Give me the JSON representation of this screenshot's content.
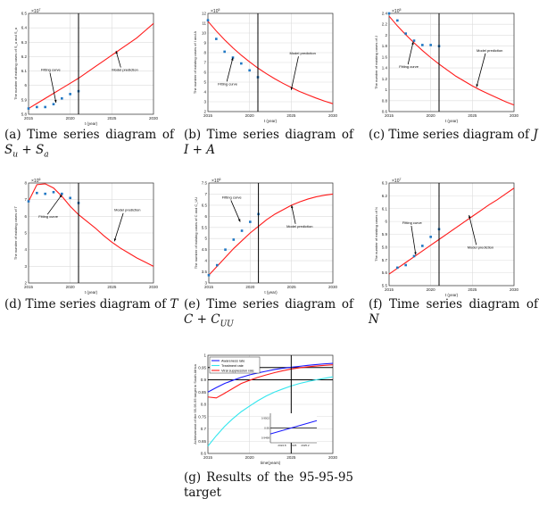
{
  "colors": {
    "model": "#ff1a1a",
    "points": "#1f77c4",
    "vline": "#000000",
    "grid": "#dcdcdc",
    "awareness": "#1a1aff",
    "treatment": "#33e6ee",
    "suppression": "#ff1a1a"
  },
  "captions": [
    {
      "label": "(a) Time series diagram of",
      "math": [
        {
          "t": "S"
        },
        {
          "t": "u",
          "sub": true
        },
        {
          "t": " + "
        },
        {
          "t": "S"
        },
        {
          "t": "a",
          "sub": true
        }
      ]
    },
    {
      "label": "(b) Time series diagram of",
      "math": [
        {
          "t": "I"
        },
        {
          "t": " + "
        },
        {
          "t": "A"
        }
      ]
    },
    {
      "label": "(c) Time series diagram of",
      "math": [
        {
          "t": "J"
        }
      ]
    },
    {
      "label": "(d) Time series diagram of",
      "math": [
        {
          "t": "T"
        }
      ]
    },
    {
      "label": "(e) Time series diagram of",
      "math": [
        {
          "t": "C"
        },
        {
          "t": " + "
        },
        {
          "t": "C"
        },
        {
          "t": "UU",
          "sub": true
        }
      ]
    },
    {
      "label": "(f) Time series diagram of",
      "math": [
        {
          "t": "N"
        }
      ]
    },
    {
      "label": "(g) Results of the 95-95-95 target",
      "math": []
    }
  ],
  "chart_data": [
    {
      "type": "line",
      "xlabel": "t (year)",
      "ylabel": "The number of existing cases of S_u and S_a",
      "exponent": "7",
      "ylim": [
        5.8,
        6.5
      ],
      "yticks": [
        5.8,
        5.9,
        6,
        6.1,
        6.2,
        6.3,
        6.4,
        6.5
      ],
      "xlim": [
        2015,
        2030
      ],
      "xticks": [
        2015,
        2020,
        2025,
        2030
      ],
      "vline": 2021,
      "grid": true,
      "annotations": [
        "Fitting curve",
        "Model prediction"
      ],
      "points": {
        "x": [
          2015,
          2016,
          2017,
          2018,
          2019,
          2020,
          2021
        ],
        "y": [
          5.84,
          5.85,
          5.85,
          5.87,
          5.91,
          5.94,
          5.96
        ]
      },
      "curve": {
        "x": [
          2015,
          2016,
          2017,
          2018,
          2019,
          2020,
          2021,
          2022,
          2023,
          2024,
          2025,
          2026,
          2027,
          2028,
          2029,
          2030
        ],
        "y": [
          5.84,
          5.875,
          5.91,
          5.945,
          5.98,
          6.015,
          6.05,
          6.09,
          6.13,
          6.17,
          6.21,
          6.25,
          6.29,
          6.33,
          6.38,
          6.43
        ]
      }
    },
    {
      "type": "line",
      "xlabel": "t (year)",
      "ylabel": "The number of existing cases of I and A",
      "exponent": "5",
      "ylim": [
        2,
        12
      ],
      "yticks": [
        2,
        3,
        4,
        5,
        6,
        7,
        8,
        9,
        10,
        11,
        12
      ],
      "xlim": [
        2015,
        2030
      ],
      "xticks": [
        2015,
        2020,
        2025,
        2030
      ],
      "vline": 2021,
      "grid": true,
      "annotations": [
        "Fitting curve",
        "Model prediction"
      ],
      "points": {
        "x": [
          2015,
          2016,
          2017,
          2018,
          2019,
          2020,
          2021
        ],
        "y": [
          11.3,
          9.4,
          8.1,
          7.5,
          6.9,
          6.2,
          5.5
        ]
      },
      "curve": {
        "x": [
          2015,
          2016,
          2017,
          2018,
          2019,
          2020,
          2021,
          2022,
          2023,
          2024,
          2025,
          2026,
          2027,
          2028,
          2029,
          2030
        ],
        "y": [
          11.2,
          10.21,
          9.31,
          8.49,
          7.74,
          7.06,
          6.43,
          5.87,
          5.35,
          4.88,
          4.45,
          4.05,
          3.7,
          3.37,
          3.07,
          2.8
        ]
      }
    },
    {
      "type": "line",
      "xlabel": "t (year)",
      "ylabel": "The number of existing cases of J",
      "exponent": "5",
      "ylim": [
        0.6,
        2.4
      ],
      "yticks": [
        0.6,
        0.8,
        1,
        1.2,
        1.4,
        1.6,
        1.8,
        2,
        2.2,
        2.4
      ],
      "xlim": [
        2015,
        2030
      ],
      "xticks": [
        2015,
        2020,
        2025,
        2030
      ],
      "vline": 2021,
      "grid": true,
      "annotations": [
        "Fitting curve",
        "Model prediction"
      ],
      "points": {
        "x": [
          2015,
          2016,
          2017,
          2018,
          2019,
          2020,
          2021
        ],
        "y": [
          2.4,
          2.27,
          2.03,
          1.9,
          1.82,
          1.82,
          1.8
        ]
      },
      "curve": {
        "x": [
          2015,
          2016,
          2017,
          2018,
          2019,
          2020,
          2021,
          2022,
          2023,
          2024,
          2025,
          2026,
          2027,
          2028,
          2029,
          2030
        ],
        "y": [
          2.35,
          2.17,
          2.01,
          1.86,
          1.72,
          1.59,
          1.47,
          1.36,
          1.25,
          1.16,
          1.07,
          0.99,
          0.92,
          0.85,
          0.78,
          0.72
        ]
      }
    },
    {
      "type": "line",
      "xlabel": "t (year)",
      "ylabel": "The number of existing cases of T",
      "exponent": "6",
      "ylim": [
        2,
        8
      ],
      "yticks": [
        2,
        3,
        4,
        5,
        6,
        7,
        8
      ],
      "xlim": [
        2015,
        2030
      ],
      "xticks": [
        2015,
        2020,
        2025,
        2030
      ],
      "vline": 2021,
      "grid": true,
      "annotations": [
        "Fitting curve",
        "Model prediction"
      ],
      "points": {
        "x": [
          2015,
          2016,
          2017,
          2018,
          2019,
          2020,
          2021
        ],
        "y": [
          6.9,
          7.4,
          7.35,
          7.45,
          7.35,
          7.1,
          6.8
        ]
      },
      "curve": {
        "x": [
          2015,
          2016,
          2017,
          2018,
          2019,
          2020,
          2021,
          2022,
          2023,
          2024,
          2025,
          2026,
          2027,
          2028,
          2029,
          2030
        ],
        "y": [
          6.9,
          7.9,
          7.95,
          7.7,
          7.2,
          6.6,
          6.1,
          5.7,
          5.3,
          4.85,
          4.45,
          4.1,
          3.8,
          3.5,
          3.25,
          3.0
        ]
      }
    },
    {
      "type": "line",
      "xlabel": "t (year)",
      "ylabel": "The number of existing cases of C and C_UU",
      "exponent": "6",
      "ylim": [
        3,
        7.5
      ],
      "yticks": [
        3,
        3.5,
        4,
        4.5,
        5,
        5.5,
        6,
        6.5,
        7,
        7.5
      ],
      "xlim": [
        2015,
        2030
      ],
      "xticks": [
        2015,
        2020,
        2025,
        2030
      ],
      "vline": 2021,
      "grid": true,
      "annotations": [
        "Fitting curve",
        "Model prediction"
      ],
      "points": {
        "x": [
          2015,
          2016,
          2017,
          2018,
          2019,
          2020,
          2021
        ],
        "y": [
          3.35,
          3.8,
          4.5,
          4.95,
          5.35,
          5.75,
          6.1
        ]
      },
      "curve": {
        "x": [
          2015,
          2016,
          2017,
          2018,
          2019,
          2020,
          2021,
          2022,
          2023,
          2024,
          2025,
          2026,
          2027,
          2028,
          2029,
          2030
        ],
        "y": [
          3.35,
          3.75,
          4.15,
          4.55,
          4.9,
          5.25,
          5.55,
          5.85,
          6.1,
          6.3,
          6.5,
          6.65,
          6.78,
          6.88,
          6.95,
          7.0
        ]
      }
    },
    {
      "type": "line",
      "xlabel": "t (year)",
      "ylabel": "The number of existing cases of N",
      "exponent": "7",
      "ylim": [
        5.5,
        6.3
      ],
      "yticks": [
        5.5,
        5.6,
        5.7,
        5.8,
        5.9,
        6,
        6.1,
        6.2,
        6.3
      ],
      "xlim": [
        2015,
        2030
      ],
      "xticks": [
        2015,
        2020,
        2025,
        2030
      ],
      "vline": 2021,
      "grid": true,
      "annotations": [
        "Fitting curve",
        "Model prediction"
      ],
      "points": {
        "x": [
          2016,
          2017,
          2018,
          2019,
          2020,
          2021
        ],
        "y": [
          5.64,
          5.66,
          5.73,
          5.81,
          5.88,
          5.94
        ]
      },
      "curve": {
        "x": [
          2015,
          2016,
          2017,
          2018,
          2019,
          2020,
          2021,
          2022,
          2023,
          2024,
          2025,
          2026,
          2027,
          2028,
          2029,
          2030
        ],
        "y": [
          5.59,
          5.635,
          5.68,
          5.725,
          5.77,
          5.815,
          5.86,
          5.905,
          5.95,
          5.995,
          6.04,
          6.085,
          6.13,
          6.17,
          6.215,
          6.26
        ]
      }
    },
    {
      "type": "line",
      "xlabel": "time(years)",
      "ylabel": "Achievement of the 95-95-95 target in South Africa",
      "ylim": [
        0.6,
        1
      ],
      "yticks": [
        0.6,
        0.65,
        0.7,
        0.75,
        0.8,
        0.85,
        0.9,
        0.95,
        1
      ],
      "xlim": [
        2015,
        2030
      ],
      "xticks": [
        2015,
        2020,
        2025,
        2030
      ],
      "vline": 2025,
      "hlines": [
        0.9,
        0.95
      ],
      "grid": true,
      "legend": "top-left",
      "x": [
        2015,
        2016,
        2017,
        2018,
        2019,
        2020,
        2021,
        2022,
        2023,
        2024,
        2025,
        2026,
        2027,
        2028,
        2029,
        2030
      ],
      "series": [
        {
          "name": "Awareness rate",
          "color": "#1a1aff",
          "values": [
            0.85,
            0.868,
            0.885,
            0.898,
            0.91,
            0.92,
            0.928,
            0.935,
            0.942,
            0.947,
            0.951,
            0.955,
            0.959,
            0.962,
            0.965,
            0.967
          ]
        },
        {
          "name": "Treatment rate",
          "color": "#33e6ee",
          "values": [
            0.63,
            0.672,
            0.71,
            0.742,
            0.77,
            0.793,
            0.815,
            0.834,
            0.85,
            0.863,
            0.875,
            0.885,
            0.893,
            0.9,
            0.906,
            0.912
          ]
        },
        {
          "name": "Viral suppression rate",
          "color": "#ff1a1a",
          "values": [
            0.83,
            0.826,
            0.845,
            0.865,
            0.885,
            0.898,
            0.91,
            0.92,
            0.929,
            0.937,
            0.944,
            0.949,
            0.953,
            0.956,
            0.959,
            0.961
          ]
        }
      ],
      "inset": {
        "xlim": [
          2024.6,
          2025.4
        ],
        "xticks": [
          "2024.8",
          "2025",
          "2025.2"
        ],
        "ylim": [
          0.9497,
          0.9503
        ],
        "yticks": [
          "0.9498",
          "0.95",
          "0.9502"
        ],
        "x": [
          2024.6,
          2025.4
        ],
        "y": [
          0.94988,
          0.95015
        ]
      }
    }
  ]
}
